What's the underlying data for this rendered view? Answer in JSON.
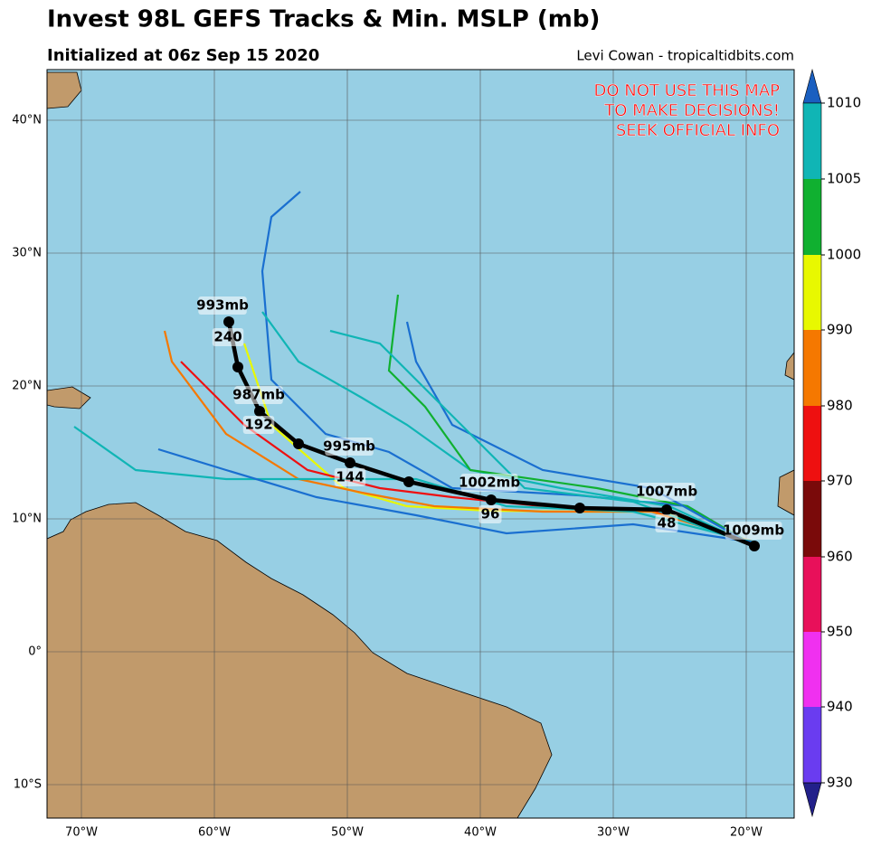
{
  "header": {
    "title": "Invest 98L GEFS Tracks & Min. MSLP (mb)",
    "subtitle": "Initialized at 06z Sep 15 2020",
    "credit": "Levi Cowan - tropicaltidbits.com"
  },
  "warning": [
    "DO NOT USE THIS MAP",
    "TO MAKE DECISIONS!",
    "SEEK OFFICIAL INFO"
  ],
  "map": {
    "lat_labels": [
      "40°N",
      "30°N",
      "20°N",
      "10°N",
      "0°",
      "10°S"
    ],
    "lon_labels": [
      "70°W",
      "60°W",
      "50°W",
      "40°W",
      "30°W",
      "20°W"
    ]
  },
  "pressure_labels": [
    "1009mb",
    "1007mb",
    "1002mb",
    "995mb",
    "987mb",
    "993mb"
  ],
  "hour_labels": [
    "48",
    "96",
    "144",
    "192",
    "240"
  ],
  "colorbar": {
    "labels": [
      1010,
      1005,
      1000,
      990,
      980,
      970,
      960,
      950,
      940,
      930
    ]
  }
}
